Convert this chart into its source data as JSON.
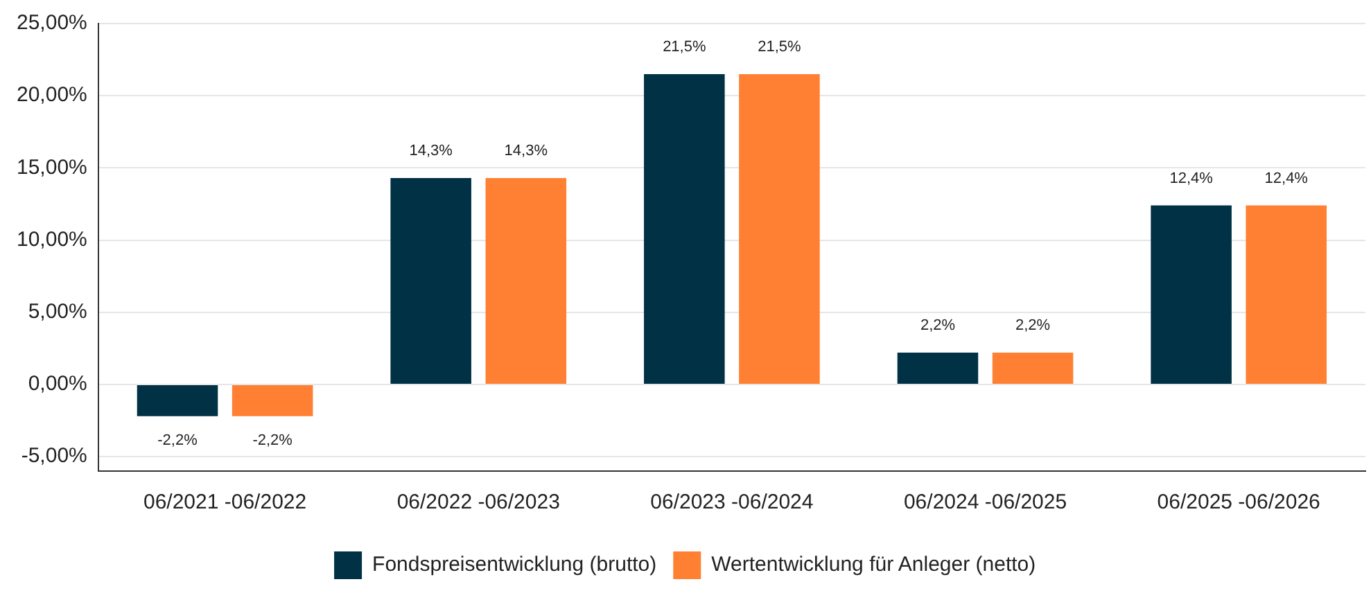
{
  "chart_data": {
    "type": "bar",
    "categories": [
      "06/2021 -06/2022",
      "06/2022 -06/2023",
      "06/2023 -06/2024",
      "06/2024 -06/2025",
      "06/2025 -06/2026"
    ],
    "series": [
      {
        "name": "Fondspreisentwicklung (brutto)",
        "color": "#003145",
        "values": [
          -2.2,
          14.3,
          21.5,
          2.2,
          12.4
        ],
        "value_labels": [
          "-2,2%",
          "14,3%",
          "21,5%",
          "2,2%",
          "12,4%"
        ]
      },
      {
        "name": "Wertentwicklung für Anleger (netto)",
        "color": "#ff8033",
        "values": [
          -2.2,
          14.3,
          21.5,
          2.2,
          12.4
        ],
        "value_labels": [
          "-2,2%",
          "14,3%",
          "21,5%",
          "2,2%",
          "12,4%"
        ]
      }
    ],
    "ylim": [
      -6,
      25
    ],
    "yticks": [
      {
        "value": -5,
        "label": "-5,00%"
      },
      {
        "value": 0,
        "label": "0,00%"
      },
      {
        "value": 5,
        "label": "5,00%"
      },
      {
        "value": 10,
        "label": "10,00%"
      },
      {
        "value": 15,
        "label": "15,00%"
      },
      {
        "value": 20,
        "label": "20,00%"
      },
      {
        "value": 25,
        "label": "25,00%"
      }
    ],
    "grid": "y",
    "legend": "bottom"
  }
}
